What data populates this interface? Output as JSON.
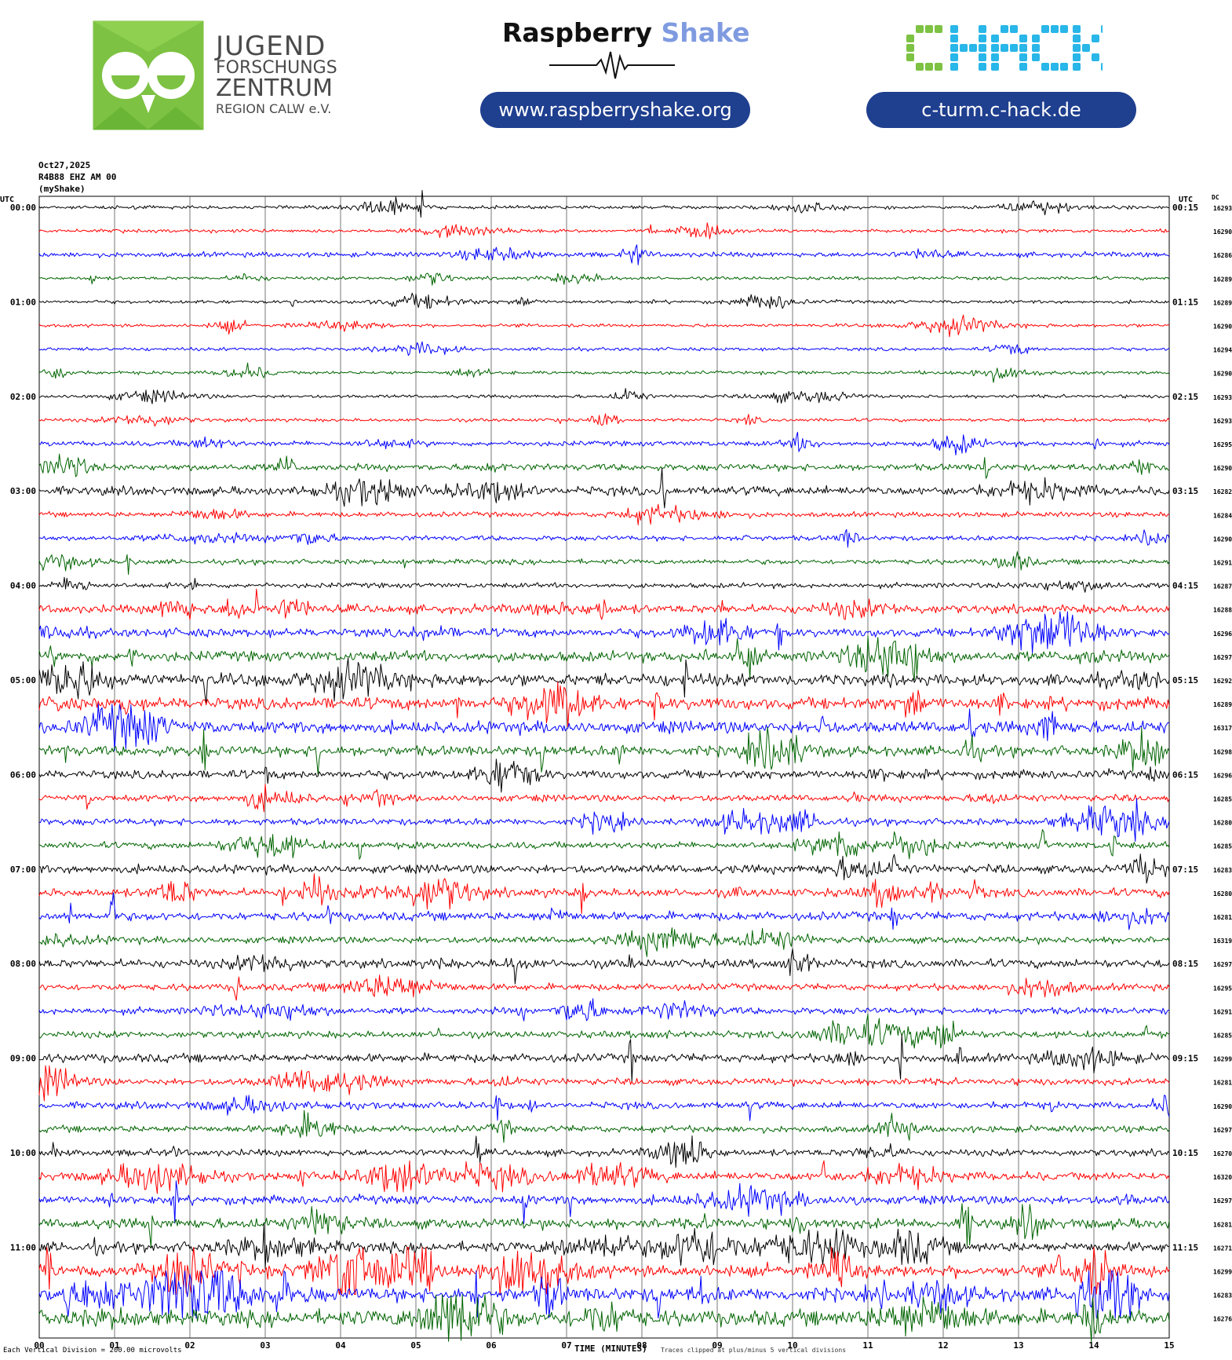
{
  "header": {
    "jfz": {
      "line1": "JUGEND",
      "line2": "FORSCHUNGS",
      "line3": "ZENTRUM",
      "line4": "REGION CALW e.V."
    },
    "rs": {
      "title_main": "Raspberry",
      "title_accent": "Shake",
      "url": "www.raspberryshake.org"
    },
    "chack": {
      "logo_text": "CHACK",
      "url": "c-turm.c-hack.de"
    },
    "colors": {
      "jfz_green": "#7dc242",
      "rs_accent": "#7f9be0",
      "pill": "#1f3f8f",
      "chack_green": "#7dc242",
      "chack_blue": "#29b6e8"
    }
  },
  "info": {
    "date": "Oct27,2025",
    "station": "R4B88 EHZ AM 00",
    "source": "(myShake)"
  },
  "axis_labels": {
    "utc_left": "UTC",
    "utc_right": "UTC",
    "dc": "DC"
  },
  "footer": {
    "scale": "Each Vertical Division =  200.00 microvolts",
    "xlabel": "TIME (MINUTES)",
    "clip_note": "Traces clipped at plus/minus 5 vertical divisions"
  },
  "chart_data": {
    "type": "line",
    "title": "",
    "xlabel": "TIME (MINUTES)",
    "ylabel": "",
    "x_ticks": [
      "00",
      "01",
      "02",
      "03",
      "04",
      "05",
      "06",
      "07",
      "08",
      "09",
      "10",
      "11",
      "12",
      "13",
      "14",
      "15"
    ],
    "xlim": [
      0,
      15
    ],
    "trace_colors": [
      "#000000",
      "#ff0000",
      "#0000ff",
      "#006400"
    ],
    "left_labels": [
      "00:00",
      "01:00",
      "02:00",
      "03:00",
      "04:00",
      "05:00",
      "06:00",
      "07:00",
      "08:00",
      "09:00",
      "10:00",
      "11:00"
    ],
    "right_labels": [
      "00:15",
      "01:15",
      "02:15",
      "03:15",
      "04:15",
      "05:15",
      "06:15",
      "07:15",
      "08:15",
      "09:15",
      "10:15",
      "11:15"
    ],
    "dc_values": [
      "16293",
      "16290",
      "16286",
      "16289",
      "16289",
      "16290",
      "16294",
      "16290",
      "16293",
      "16293",
      "16295",
      "16290",
      "16282",
      "16284",
      "16290",
      "16291",
      "16287",
      "16288",
      "16296",
      "16297",
      "16292",
      "16289",
      "16317",
      "16298",
      "16296",
      "16285",
      "16280",
      "16285",
      "16283",
      "16280",
      "16281",
      "16319",
      "16297",
      "16295",
      "16291",
      "16285",
      "16299",
      "16281",
      "16290",
      "16297",
      "16270",
      "16320",
      "16297",
      "16281",
      "16271",
      "16299",
      "16283",
      "16276"
    ],
    "activity_level": [
      1,
      1,
      2,
      1,
      1,
      1,
      1,
      1,
      1,
      1,
      2,
      3,
      4,
      2,
      2,
      2,
      2,
      4,
      4,
      5,
      6,
      6,
      6,
      5,
      4,
      3,
      3,
      3,
      4,
      4,
      4,
      3,
      4,
      3,
      3,
      3,
      4,
      3,
      3,
      3,
      3,
      4,
      4,
      5,
      5,
      6,
      7,
      8
    ],
    "grid": true,
    "units": "microvolts",
    "vertical_division_microvolts": 200.0
  }
}
